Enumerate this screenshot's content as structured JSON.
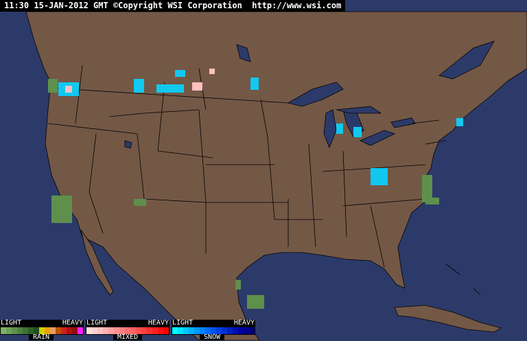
{
  "header": {
    "timestamp": "11:30 15-JAN-2012 GMT",
    "copyright": "©Copyright WSI Corporation",
    "url": "http://www.wsi.com"
  },
  "colors": {
    "ocean": "#2c3a6a",
    "land": "#735846",
    "borders": "#000000"
  },
  "legend": [
    {
      "name": "RAIN",
      "light": "LIGHT",
      "heavy": "HEAVY",
      "colors": [
        "#7fb064",
        "#6ea057",
        "#5e904c",
        "#4e8040",
        "#3f7034",
        "#30602a",
        "#205020",
        "#d0d000",
        "#f0a000",
        "#e0a060",
        "#c05000",
        "#d02020",
        "#b01010",
        "#901010",
        "#ff20ff"
      ]
    },
    {
      "name": "MIXED",
      "light": "LIGHT",
      "heavy": "HEAVY",
      "colors": [
        "#ffe0e0",
        "#ffd0d0",
        "#ffc0c0",
        "#ffb0b0",
        "#ffa0a0",
        "#ff9090",
        "#ff8080",
        "#ff7070",
        "#ff6060",
        "#ff5050",
        "#ff4040",
        "#ff3030",
        "#ff2020",
        "#ff1010",
        "#ff0000"
      ]
    },
    {
      "name": "SNOW",
      "light": "LIGHT",
      "heavy": "HEAVY",
      "colors": [
        "#00ffff",
        "#00e0ff",
        "#00c8ff",
        "#00b0ff",
        "#0098ff",
        "#0080ff",
        "#0068ff",
        "#0050f0",
        "#0040e0",
        "#0030d0",
        "#0020c0",
        "#0010b0",
        "#0000a0",
        "#000090",
        "#000080"
      ]
    }
  ]
}
